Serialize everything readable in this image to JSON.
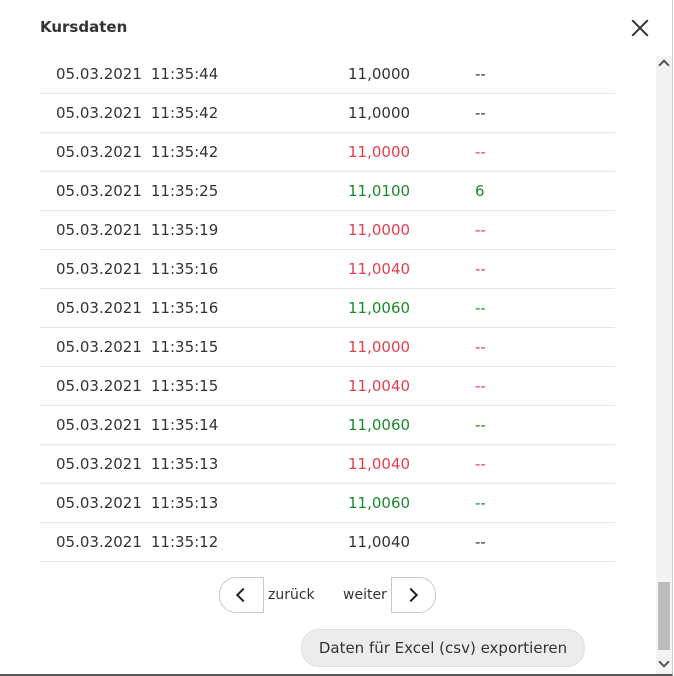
{
  "dialog": {
    "title": "Kursdaten"
  },
  "rows": [
    {
      "date": "05.03.2021",
      "time": "11:35:44",
      "price": "11,0000",
      "volume": "--",
      "trend": "neutral"
    },
    {
      "date": "05.03.2021",
      "time": "11:35:42",
      "price": "11,0000",
      "volume": "--",
      "trend": "neutral"
    },
    {
      "date": "05.03.2021",
      "time": "11:35:42",
      "price": "11,0000",
      "volume": "--",
      "trend": "down"
    },
    {
      "date": "05.03.2021",
      "time": "11:35:25",
      "price": "11,0100",
      "volume": "6",
      "trend": "up"
    },
    {
      "date": "05.03.2021",
      "time": "11:35:19",
      "price": "11,0000",
      "volume": "--",
      "trend": "down"
    },
    {
      "date": "05.03.2021",
      "time": "11:35:16",
      "price": "11,0040",
      "volume": "--",
      "trend": "down"
    },
    {
      "date": "05.03.2021",
      "time": "11:35:16",
      "price": "11,0060",
      "volume": "--",
      "trend": "up"
    },
    {
      "date": "05.03.2021",
      "time": "11:35:15",
      "price": "11,0000",
      "volume": "--",
      "trend": "down"
    },
    {
      "date": "05.03.2021",
      "time": "11:35:15",
      "price": "11,0040",
      "volume": "--",
      "trend": "down"
    },
    {
      "date": "05.03.2021",
      "time": "11:35:14",
      "price": "11,0060",
      "volume": "--",
      "trend": "up"
    },
    {
      "date": "05.03.2021",
      "time": "11:35:13",
      "price": "11,0040",
      "volume": "--",
      "trend": "down"
    },
    {
      "date": "05.03.2021",
      "time": "11:35:13",
      "price": "11,0060",
      "volume": "--",
      "trend": "up"
    },
    {
      "date": "05.03.2021",
      "time": "11:35:12",
      "price": "11,0040",
      "volume": "--",
      "trend": "neutral"
    }
  ],
  "pagination": {
    "prev_label": "zurück",
    "next_label": "weiter"
  },
  "export": {
    "label": "Daten für Excel (csv) exportieren"
  },
  "colors": {
    "up": "#1b8a2c",
    "down": "#e2404f",
    "neutral": "#333333"
  },
  "icons": {
    "close": "close-icon",
    "prev": "chevron-left-icon",
    "next": "chevron-right-icon"
  }
}
